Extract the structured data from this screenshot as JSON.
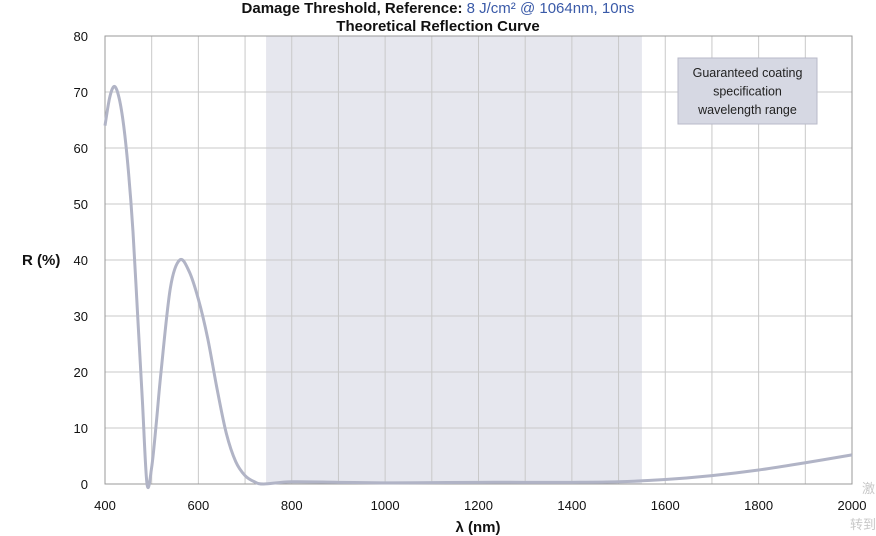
{
  "header": {
    "line1_label": "Damage Threshold, Reference:",
    "line1_value": "8 J/cm² @ 1064nm, 10ns"
  },
  "chart_data": {
    "type": "line",
    "title": "Theoretical Reflection Curve",
    "xlabel": "λ (nm)",
    "ylabel": "R (%)",
    "xlim": [
      400,
      2000
    ],
    "ylim": [
      0,
      80
    ],
    "xticks": [
      400,
      600,
      800,
      1000,
      1200,
      1400,
      1600,
      1800,
      2000
    ],
    "yticks": [
      0,
      10,
      20,
      30,
      40,
      50,
      60,
      70,
      80
    ],
    "grid": true,
    "shaded_range": {
      "x": [
        745,
        1550
      ],
      "label": "Guaranteed coating specification wavelength range",
      "label_lines": [
        "Guaranteed coating",
        "specification",
        "wavelength range"
      ]
    },
    "colors": {
      "curve": "#b1b4c6",
      "shade": "#e6e7ee",
      "annotation_box": "#d6d8e3",
      "grid": "#c9c9c9"
    },
    "series": [
      {
        "x": [
          400,
          410,
          420,
          430,
          440,
          450,
          460,
          470,
          480,
          490,
          500,
          510,
          520,
          540,
          560,
          580,
          600,
          620,
          640,
          660,
          680,
          700,
          720,
          740,
          800,
          900,
          1000,
          1100,
          1200,
          1300,
          1400,
          1500,
          1600,
          1700,
          1800,
          1900,
          2000
        ],
        "y": [
          64,
          69,
          71,
          69,
          64,
          56,
          45,
          30,
          15,
          0,
          3,
          11,
          20,
          35,
          40,
          38,
          33,
          26,
          17,
          9,
          4,
          1.5,
          0.4,
          0,
          0.4,
          0.3,
          0.2,
          0.25,
          0.3,
          0.3,
          0.3,
          0.4,
          0.8,
          1.5,
          2.5,
          3.8,
          5.2
        ]
      }
    ]
  },
  "watermark": {
    "line1": "激",
    "line2": "转到"
  }
}
